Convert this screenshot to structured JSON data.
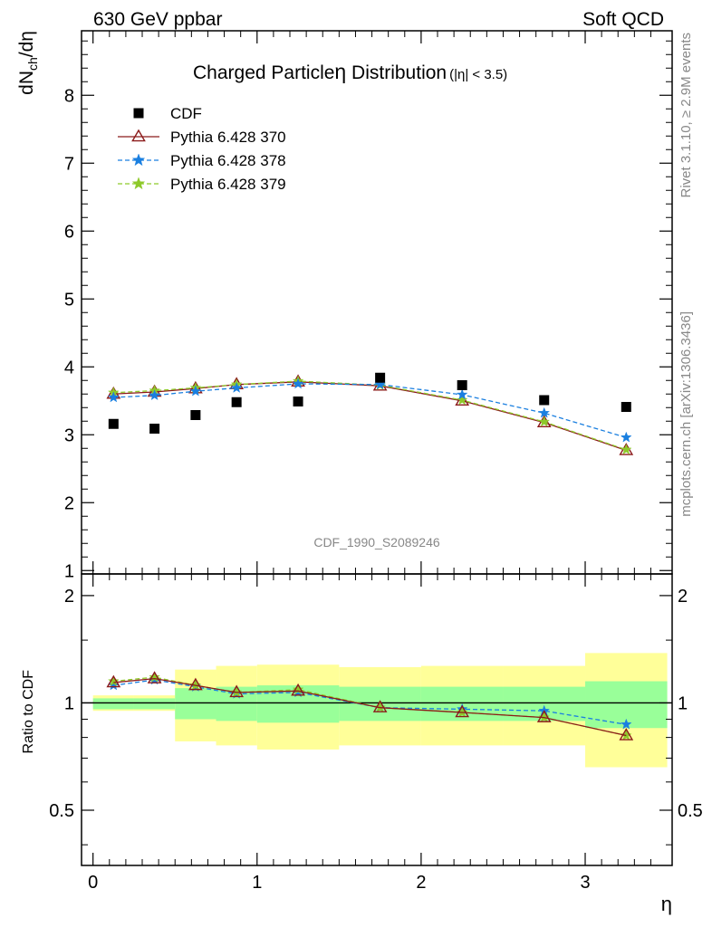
{
  "header": {
    "left": "630 GeV ppbar",
    "right": "Soft QCD"
  },
  "side_labels": {
    "rivet": "Rivet 3.1.10, ≥ 2.9M events",
    "mcplots": "mcplots.cern.ch [arXiv:1306.3436]"
  },
  "watermark": "CDF_1990_S2089246",
  "chart_data": [
    {
      "type": "scatter",
      "panel": "main",
      "title": "Charged Particle",
      "title_symbol": "η",
      "title_rest": " Distribution",
      "title_sub": "(|η| < 3.5)",
      "ylabel": "dNch/dη",
      "ylabel_parts": {
        "a": "dN",
        "sub": "ch",
        "b": "/dη"
      },
      "xlim": [
        -0.07,
        3.53
      ],
      "ylim": [
        0.95,
        8.95
      ],
      "y_ticks": [
        1,
        2,
        3,
        4,
        5,
        6,
        7,
        8
      ],
      "y_tick_labels": [
        "1",
        "2",
        "3",
        "4",
        "5",
        "6",
        "7",
        "8"
      ],
      "legend_position": "top-left",
      "x": [
        0.125,
        0.375,
        0.625,
        0.875,
        1.25,
        1.75,
        2.25,
        2.75,
        3.25
      ],
      "series": [
        {
          "name": "CDF",
          "color": "#000000",
          "style": "square",
          "values": [
            3.16,
            3.09,
            3.29,
            3.48,
            3.49,
            3.84,
            3.73,
            3.51,
            3.41
          ]
        },
        {
          "name": "Pythia 6.428 370",
          "color": "#8b1a1a",
          "style": "triangle-solid",
          "values": [
            3.6,
            3.63,
            3.68,
            3.74,
            3.78,
            3.72,
            3.5,
            3.18,
            2.77
          ]
        },
        {
          "name": "Pythia 6.428 378",
          "color": "#1a7fe0",
          "style": "star-dashed",
          "values": [
            3.55,
            3.58,
            3.64,
            3.69,
            3.75,
            3.74,
            3.59,
            3.32,
            2.96
          ]
        },
        {
          "name": "Pythia 6.428 379",
          "color": "#8ec92a",
          "style": "star-dashed",
          "values": [
            3.62,
            3.65,
            3.69,
            3.74,
            3.79,
            3.73,
            3.51,
            3.19,
            2.78
          ]
        }
      ]
    },
    {
      "type": "line",
      "panel": "ratio",
      "ylabel": "Ratio to CDF",
      "xlabel": "η",
      "xlim": [
        -0.07,
        3.53
      ],
      "ylim": [
        0.35,
        2.3
      ],
      "y_ticks": [
        0.5,
        1,
        2
      ],
      "y_tick_labels": [
        "0.5",
        "1",
        "2"
      ],
      "x_ticks": [
        0,
        1,
        2,
        3
      ],
      "x_tick_labels": [
        "0",
        "1",
        "2",
        "3"
      ],
      "bin_edges": [
        0,
        0.25,
        0.5,
        0.75,
        1.0,
        1.5,
        2.0,
        2.5,
        3.0,
        3.5
      ],
      "band_inner": {
        "color": "#99ff99",
        "low": [
          0.96,
          0.96,
          0.9,
          0.89,
          0.88,
          0.89,
          0.89,
          0.89,
          0.85
        ],
        "high": [
          1.03,
          1.03,
          1.1,
          1.11,
          1.12,
          1.11,
          1.11,
          1.11,
          1.15
        ]
      },
      "band_outer": {
        "color": "#ffff99",
        "low": [
          0.95,
          0.95,
          0.78,
          0.76,
          0.74,
          0.76,
          0.76,
          0.76,
          0.66
        ],
        "high": [
          1.05,
          1.05,
          1.24,
          1.27,
          1.28,
          1.26,
          1.27,
          1.27,
          1.38
        ]
      },
      "x": [
        0.125,
        0.375,
        0.625,
        0.875,
        1.25,
        1.75,
        2.25,
        2.75,
        3.25
      ],
      "series": [
        {
          "name": "Pythia 6.428 370",
          "color": "#8b1a1a",
          "style": "triangle-solid",
          "values": [
            1.14,
            1.17,
            1.12,
            1.07,
            1.08,
            0.97,
            0.94,
            0.91,
            0.81
          ]
        },
        {
          "name": "Pythia 6.428 378",
          "color": "#1a7fe0",
          "style": "star-dashed",
          "values": [
            1.12,
            1.16,
            1.11,
            1.06,
            1.07,
            0.97,
            0.96,
            0.95,
            0.87
          ]
        },
        {
          "name": "Pythia 6.428 379",
          "color": "#8ec92a",
          "style": "star-dashed",
          "values": [
            1.15,
            1.18,
            1.12,
            1.07,
            1.09,
            0.97,
            0.94,
            0.91,
            0.81
          ]
        }
      ]
    }
  ]
}
